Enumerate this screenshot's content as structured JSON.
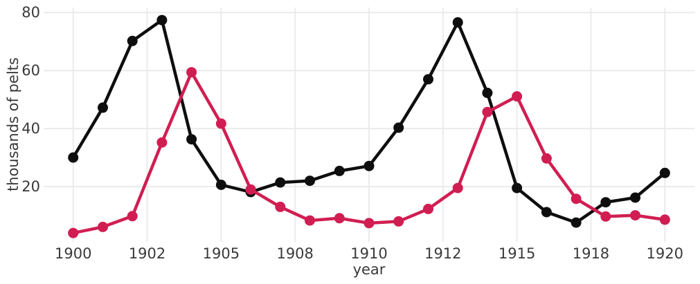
{
  "figure": {
    "background": "#ffffff",
    "grid_color": "#ebebeb",
    "text_color": "#3a3a3a"
  },
  "chart_data": {
    "type": "line",
    "title": "",
    "xlabel": "year",
    "ylabel": "thousands of pelts",
    "grid": true,
    "legend": false,
    "marker": "circle",
    "x": [
      1900,
      1901,
      1902,
      1903,
      1904,
      1905,
      1906,
      1907,
      1908,
      1909,
      1910,
      1911,
      1912,
      1913,
      1914,
      1915,
      1916,
      1917,
      1918,
      1919,
      1920
    ],
    "series": [
      {
        "name": "black",
        "color": "#0e0e0e",
        "values": [
          30,
          47.2,
          70.2,
          77.4,
          36.3,
          20.6,
          18.1,
          21.4,
          22,
          25.4,
          27.1,
          40.3,
          57,
          76.6,
          52.3,
          19.5,
          11.2,
          7.6,
          14.6,
          16.2,
          24.7
        ]
      },
      {
        "name": "crimson",
        "color": "#d11e52",
        "values": [
          4,
          6.1,
          9.8,
          35.2,
          59.4,
          41.7,
          19,
          13,
          8.3,
          9.1,
          7.4,
          8,
          12.3,
          19.5,
          45.7,
          51.1,
          29.7,
          15.8,
          9.7,
          10.1,
          8.6
        ]
      }
    ],
    "yticks": [
      20,
      40,
      60,
      80
    ],
    "xticks": {
      "labels": [
        "1900",
        "1902",
        "1905",
        "1908",
        "1910",
        "1912",
        "1915",
        "1918",
        "1920"
      ],
      "positions": [
        0,
        2.5,
        5,
        7.5,
        10,
        12.5,
        15,
        17.5,
        20
      ]
    },
    "ylim": [
      0.95,
      81.7
    ],
    "xlim": [
      -1,
      21
    ]
  }
}
